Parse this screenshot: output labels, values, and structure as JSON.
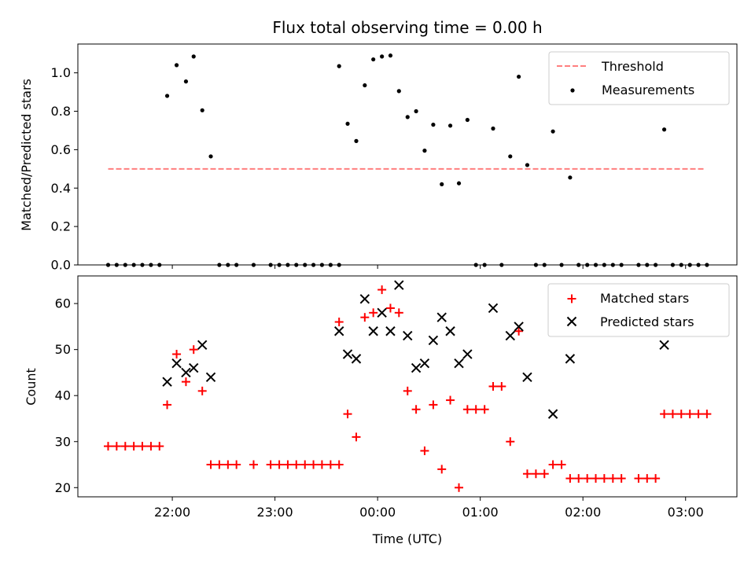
{
  "figure_title": "Flux total observing time = 0.00 h",
  "chart_data": [
    {
      "type": "scatter",
      "title": "Flux total observing time = 0.00 h",
      "xlabel": "",
      "ylabel": "Matched/Predicted stars",
      "x_unit": "hours since 00:00 UTC (negative = previous evening)",
      "xlim": [
        -2.92,
        3.5
      ],
      "ylim": [
        0.0,
        1.15
      ],
      "yticks": [
        0.0,
        0.2,
        0.4,
        0.6,
        0.8,
        1.0
      ],
      "ytick_labels": [
        "0.0",
        "0.2",
        "0.4",
        "0.6",
        "0.8",
        "1.0"
      ],
      "grid": false,
      "legend": {
        "placement": "upper right",
        "entries": [
          {
            "label": "Threshold",
            "color": "#ff7f7f",
            "style": "dashed-line"
          },
          {
            "label": "Measurements",
            "color": "#000000",
            "style": "dot"
          }
        ]
      },
      "threshold": {
        "name": "Threshold",
        "y": 0.5,
        "x_range": [
          -2.625,
          3.175
        ],
        "color": "#ff7f7f"
      },
      "series": [
        {
          "name": "Measurements",
          "color": "#000000",
          "marker": "dot",
          "points": [
            [
              -2.625,
              0.0
            ],
            [
              -2.542,
              0.0
            ],
            [
              -2.458,
              0.0
            ],
            [
              -2.375,
              0.0
            ],
            [
              -2.292,
              0.0
            ],
            [
              -2.208,
              0.0
            ],
            [
              -2.125,
              0.0
            ],
            [
              -2.05,
              0.88
            ],
            [
              -1.958,
              1.04
            ],
            [
              -1.867,
              0.955
            ],
            [
              -1.792,
              1.085
            ],
            [
              -1.708,
              0.805
            ],
            [
              -1.625,
              0.565
            ],
            [
              -1.542,
              0.0
            ],
            [
              -1.458,
              0.0
            ],
            [
              -1.375,
              0.0
            ],
            [
              -1.208,
              0.0
            ],
            [
              -1.042,
              0.0
            ],
            [
              -0.958,
              0.0
            ],
            [
              -0.875,
              0.0
            ],
            [
              -0.792,
              0.0
            ],
            [
              -0.708,
              0.0
            ],
            [
              -0.625,
              0.0
            ],
            [
              -0.542,
              0.0
            ],
            [
              -0.458,
              0.0
            ],
            [
              -0.375,
              0.0
            ],
            [
              -0.375,
              1.035
            ],
            [
              -0.292,
              0.735
            ],
            [
              -0.208,
              0.645
            ],
            [
              -0.125,
              0.935
            ],
            [
              -0.042,
              1.07
            ],
            [
              0.042,
              1.085
            ],
            [
              0.125,
              1.09
            ],
            [
              0.208,
              0.905
            ],
            [
              0.292,
              0.77
            ],
            [
              0.375,
              0.8
            ],
            [
              0.458,
              0.595
            ],
            [
              0.542,
              0.73
            ],
            [
              0.625,
              0.42
            ],
            [
              0.708,
              0.725
            ],
            [
              0.792,
              0.425
            ],
            [
              0.875,
              0.755
            ],
            [
              0.958,
              0.0
            ],
            [
              1.042,
              0.0
            ],
            [
              1.125,
              0.71
            ],
            [
              1.208,
              0.0
            ],
            [
              1.292,
              0.565
            ],
            [
              1.375,
              0.98
            ],
            [
              1.458,
              0.52
            ],
            [
              1.542,
              0.0
            ],
            [
              1.625,
              0.0
            ],
            [
              1.708,
              0.695
            ],
            [
              1.792,
              0.0
            ],
            [
              1.875,
              0.455
            ],
            [
              1.958,
              0.0
            ],
            [
              2.042,
              0.0
            ],
            [
              2.125,
              0.0
            ],
            [
              2.208,
              0.0
            ],
            [
              2.292,
              0.0
            ],
            [
              2.375,
              0.0
            ],
            [
              2.542,
              0.0
            ],
            [
              2.625,
              0.0
            ],
            [
              2.708,
              0.0
            ],
            [
              2.792,
              0.705
            ],
            [
              2.875,
              0.0
            ],
            [
              2.958,
              0.0
            ],
            [
              3.042,
              0.0
            ],
            [
              3.125,
              0.0
            ],
            [
              3.208,
              0.0
            ]
          ]
        }
      ]
    },
    {
      "type": "scatter",
      "title": "",
      "xlabel": "Time (UTC)",
      "ylabel": "Count",
      "x_unit": "hours since 00:00 UTC (negative = previous evening)",
      "xlim": [
        -2.92,
        3.5
      ],
      "ylim": [
        18,
        66
      ],
      "yticks": [
        20,
        30,
        40,
        50,
        60
      ],
      "ytick_labels": [
        "20",
        "30",
        "40",
        "50",
        "60"
      ],
      "xticks": [
        -2,
        -1,
        0,
        1,
        2,
        3
      ],
      "xtick_labels": [
        "22:00",
        "23:00",
        "00:00",
        "01:00",
        "02:00",
        "03:00"
      ],
      "grid": false,
      "legend": {
        "placement": "upper right",
        "entries": [
          {
            "label": "Matched stars",
            "color": "#ff0000",
            "style": "plus"
          },
          {
            "label": "Predicted stars",
            "color": "#000000",
            "style": "x"
          }
        ]
      },
      "series": [
        {
          "name": "Matched stars",
          "color": "#ff0000",
          "marker": "plus",
          "points": [
            [
              -2.625,
              29
            ],
            [
              -2.542,
              29
            ],
            [
              -2.458,
              29
            ],
            [
              -2.375,
              29
            ],
            [
              -2.292,
              29
            ],
            [
              -2.208,
              29
            ],
            [
              -2.125,
              29
            ],
            [
              -2.05,
              38
            ],
            [
              -1.958,
              49
            ],
            [
              -1.867,
              43
            ],
            [
              -1.792,
              50
            ],
            [
              -1.708,
              41
            ],
            [
              -1.625,
              25
            ],
            [
              -1.542,
              25
            ],
            [
              -1.458,
              25
            ],
            [
              -1.375,
              25
            ],
            [
              -1.208,
              25
            ],
            [
              -1.042,
              25
            ],
            [
              -0.958,
              25
            ],
            [
              -0.875,
              25
            ],
            [
              -0.792,
              25
            ],
            [
              -0.708,
              25
            ],
            [
              -0.625,
              25
            ],
            [
              -0.542,
              25
            ],
            [
              -0.458,
              25
            ],
            [
              -0.375,
              25
            ],
            [
              -0.375,
              56
            ],
            [
              -0.292,
              36
            ],
            [
              -0.208,
              31
            ],
            [
              -0.125,
              57
            ],
            [
              -0.042,
              58
            ],
            [
              0.042,
              63
            ],
            [
              0.125,
              59
            ],
            [
              0.208,
              58
            ],
            [
              0.292,
              41
            ],
            [
              0.375,
              37
            ],
            [
              0.458,
              28
            ],
            [
              0.542,
              38
            ],
            [
              0.625,
              24
            ],
            [
              0.708,
              39
            ],
            [
              0.792,
              20
            ],
            [
              0.875,
              37
            ],
            [
              0.958,
              37
            ],
            [
              1.042,
              37
            ],
            [
              1.125,
              42
            ],
            [
              1.208,
              42
            ],
            [
              1.292,
              30
            ],
            [
              1.375,
              54
            ],
            [
              1.458,
              23
            ],
            [
              1.542,
              23
            ],
            [
              1.625,
              23
            ],
            [
              1.708,
              25
            ],
            [
              1.792,
              25
            ],
            [
              1.875,
              22
            ],
            [
              1.958,
              22
            ],
            [
              2.042,
              22
            ],
            [
              2.125,
              22
            ],
            [
              2.208,
              22
            ],
            [
              2.292,
              22
            ],
            [
              2.375,
              22
            ],
            [
              2.542,
              22
            ],
            [
              2.625,
              22
            ],
            [
              2.708,
              22
            ],
            [
              2.792,
              36
            ],
            [
              2.875,
              36
            ],
            [
              2.958,
              36
            ],
            [
              3.042,
              36
            ],
            [
              3.125,
              36
            ],
            [
              3.208,
              36
            ]
          ]
        },
        {
          "name": "Predicted stars",
          "color": "#000000",
          "marker": "x",
          "points": [
            [
              -2.05,
              43
            ],
            [
              -1.958,
              47
            ],
            [
              -1.867,
              45
            ],
            [
              -1.792,
              46
            ],
            [
              -1.708,
              51
            ],
            [
              -1.625,
              44
            ],
            [
              -0.375,
              54
            ],
            [
              -0.292,
              49
            ],
            [
              -0.208,
              48
            ],
            [
              -0.125,
              61
            ],
            [
              -0.042,
              54
            ],
            [
              0.042,
              58
            ],
            [
              0.125,
              54
            ],
            [
              0.208,
              64
            ],
            [
              0.292,
              53
            ],
            [
              0.375,
              46
            ],
            [
              0.458,
              47
            ],
            [
              0.542,
              52
            ],
            [
              0.625,
              57
            ],
            [
              0.708,
              54
            ],
            [
              0.792,
              47
            ],
            [
              0.875,
              49
            ],
            [
              1.125,
              59
            ],
            [
              1.292,
              53
            ],
            [
              1.375,
              55
            ],
            [
              1.458,
              44
            ],
            [
              1.708,
              36
            ],
            [
              1.875,
              48
            ],
            [
              2.792,
              51
            ]
          ]
        }
      ]
    }
  ]
}
